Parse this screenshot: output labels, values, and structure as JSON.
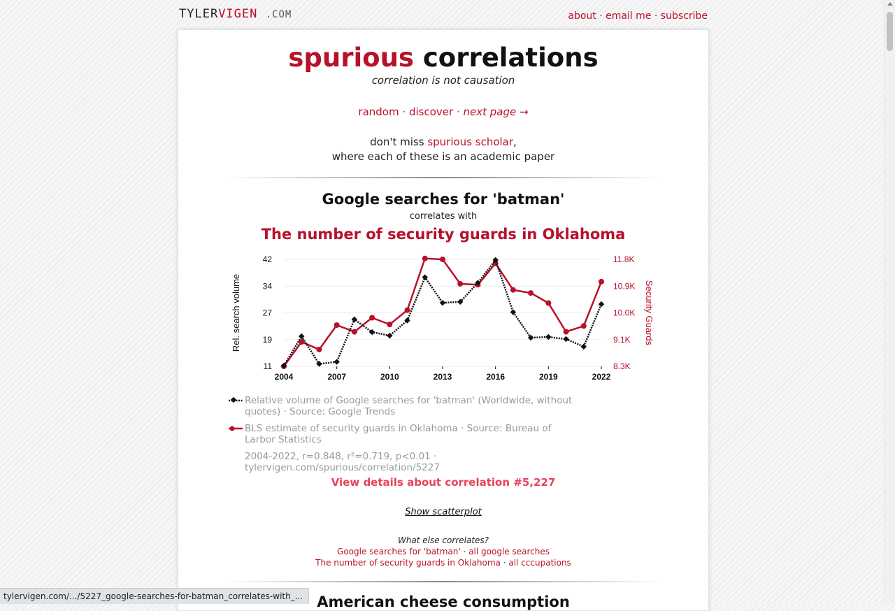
{
  "site": {
    "logo_main_1": "TYLER",
    "logo_main_2": "VIGEN",
    "logo_dom": ".COM",
    "nav": [
      "about",
      "email me",
      "subscribe"
    ],
    "nav_sep": "·"
  },
  "hero": {
    "title_red": "spurious",
    "title_black": "correlations",
    "tagline": "correlation is not causation"
  },
  "links": {
    "random": "random",
    "discover": "discover",
    "next": "next page →",
    "sep": "·"
  },
  "promo": {
    "before": "don't miss",
    "link": "spurious scholar",
    "after": ",",
    "line2": "where each of these is an academic paper"
  },
  "correlation": {
    "title": "Google searches for 'batman'",
    "connector": "correlates with",
    "subtitle": "The number of security guards in Oklahoma"
  },
  "chart_data": {
    "type": "line",
    "x": [
      2004,
      2005,
      2006,
      2007,
      2008,
      2009,
      2010,
      2011,
      2012,
      2013,
      2014,
      2015,
      2016,
      2017,
      2018,
      2019,
      2020,
      2021,
      2022
    ],
    "x_ticks": [
      "2004",
      "2007",
      "2010",
      "2013",
      "2016",
      "2019",
      "2022"
    ],
    "ylabel_left": "Rel. search volume",
    "ylabel_right": "Security Guards",
    "y_left_ticks": [
      "42",
      "34",
      "27",
      "19",
      "11"
    ],
    "y_right_ticks": [
      "11.8K",
      "10.9K",
      "10.0K",
      "9.1K",
      "8.3K"
    ],
    "ylim_left": [
      11,
      42
    ],
    "ylim_right": [
      8300,
      11800
    ],
    "series": [
      {
        "values": [
          11.2,
          19.7,
          11.7,
          12.3,
          24.6,
          20.9,
          19.9,
          24.3,
          36.8,
          29.4,
          29.7,
          35.2,
          41.8,
          26.7,
          19.3,
          19.5,
          18.9,
          16.7,
          29.0
        ],
        "color": "#111111",
        "style": "dotted-diamond"
      },
      {
        "values": [
          8300,
          9100,
          8850,
          9650,
          9430,
          9890,
          9670,
          10140,
          11830,
          11800,
          11000,
          10970,
          11670,
          10800,
          10700,
          10370,
          9430,
          9620,
          11070
        ],
        "color": "#b8112a",
        "style": "solid-circle"
      }
    ],
    "legend": [
      {
        "text": "Relative volume of Google searches for 'batman' (Worldwide, without quotes) · Source: Google Trends"
      },
      {
        "text": "BLS estimate of security guards in Oklahoma · Source: Bureau of Larbor Statistics"
      }
    ],
    "meta": "2004-2022, r=0.848, r²=0.719, p<0.01 · tylervigen.com/spurious/correlation/5227"
  },
  "actions": {
    "details": "View details about correlation #5,227",
    "scatter": "Show scatterplot"
  },
  "what_else": {
    "question": "What else correlates?",
    "row1_a": "Google searches for 'batman'",
    "row1_b": "all google searches",
    "row2_a": "The number of security guards in Oklahoma",
    "row2_b": "all cccupations",
    "sep": "·"
  },
  "next_correlation": {
    "title": "American cheese consumption"
  },
  "status_bar": {
    "url": "tylervigen.com/.../5227_google-searches-for-batman_correlates-with_..."
  },
  "colors": {
    "accent": "#b8112a",
    "details_link": "#e8425a"
  }
}
